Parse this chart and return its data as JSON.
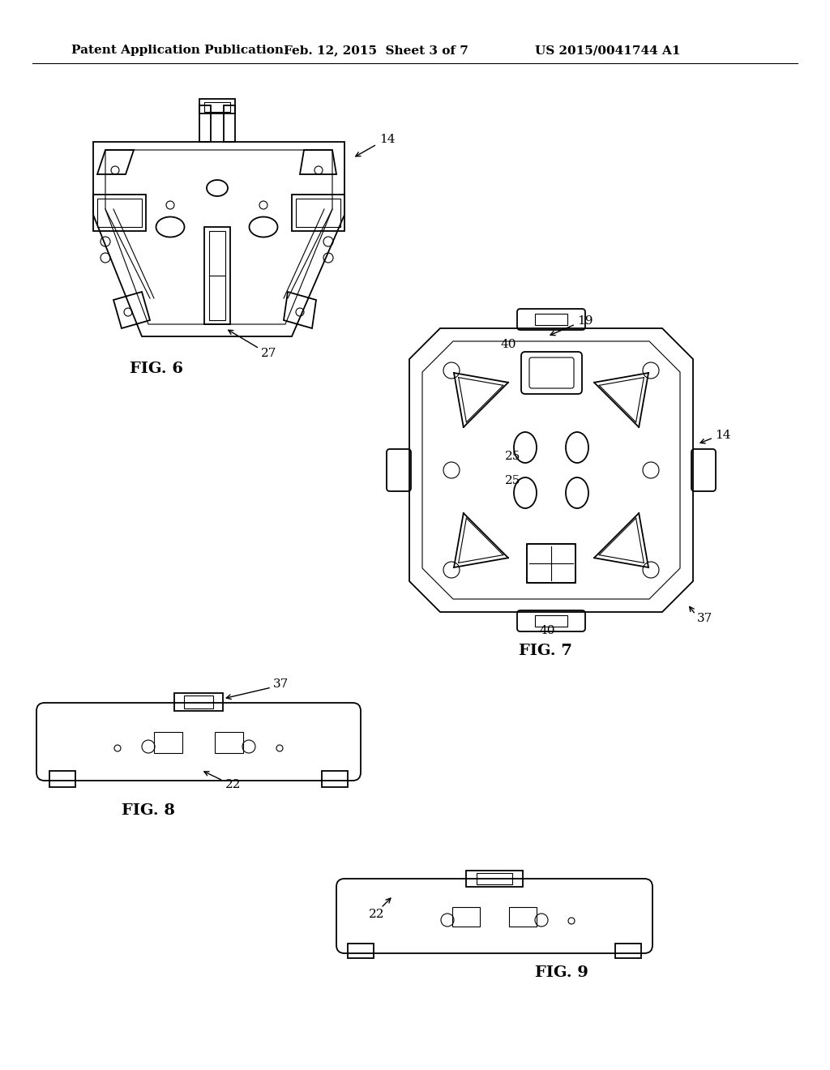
{
  "bg_color": "#ffffff",
  "header_left": "Patent Application Publication",
  "header_mid": "Feb. 12, 2015  Sheet 3 of 7",
  "header_right": "US 2015/0041744 A1",
  "header_fontsize": 11,
  "fig6_label": "FIG. 6",
  "fig7_label": "FIG. 7",
  "fig8_label": "FIG. 8",
  "fig9_label": "FIG. 9",
  "label_fontsize": 14,
  "ref_fontsize": 11
}
